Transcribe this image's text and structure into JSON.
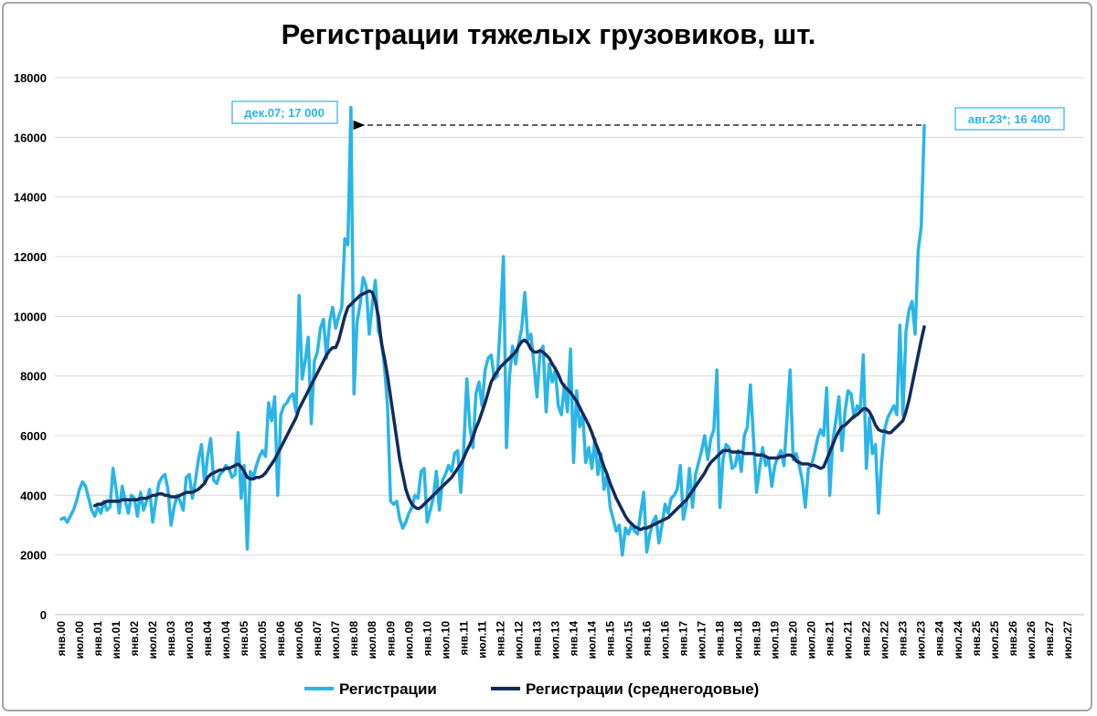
{
  "chart_data": {
    "type": "line",
    "title": "Регистрации тяжелых грузовиков, шт.",
    "categories": [
      "янв.00",
      null,
      null,
      null,
      null,
      null,
      "июл.00",
      null,
      null,
      null,
      null,
      null,
      "янв.01",
      null,
      null,
      null,
      null,
      null,
      "июл.01",
      null,
      null,
      null,
      null,
      null,
      "янв.02",
      null,
      null,
      null,
      null,
      null,
      "июл.02",
      null,
      null,
      null,
      null,
      null,
      "янв.03",
      null,
      null,
      null,
      null,
      null,
      "июл.03",
      null,
      null,
      null,
      null,
      null,
      "янв.04",
      null,
      null,
      null,
      null,
      null,
      "июл.04",
      null,
      null,
      null,
      null,
      null,
      "янв.05",
      null,
      null,
      null,
      null,
      null,
      "июл.05",
      null,
      null,
      null,
      null,
      null,
      "янв.06",
      null,
      null,
      null,
      null,
      null,
      "июл.06",
      null,
      null,
      null,
      null,
      null,
      "янв.07",
      null,
      null,
      null,
      null,
      null,
      "июл.07",
      null,
      null,
      null,
      null,
      null,
      "янв.08",
      null,
      null,
      null,
      null,
      null,
      "июл.08",
      null,
      null,
      null,
      null,
      null,
      "янв.09",
      null,
      null,
      null,
      null,
      null,
      "июл.09",
      null,
      null,
      null,
      null,
      null,
      "янв.10",
      null,
      null,
      null,
      null,
      null,
      "июл.10",
      null,
      null,
      null,
      null,
      null,
      "янв.11",
      null,
      null,
      null,
      null,
      null,
      "июл.11",
      null,
      null,
      null,
      null,
      null,
      "янв.12",
      null,
      null,
      null,
      null,
      null,
      "июл.12",
      null,
      null,
      null,
      null,
      null,
      "янв.13",
      null,
      null,
      null,
      null,
      null,
      "июл.13",
      null,
      null,
      null,
      null,
      null,
      "янв.14",
      null,
      null,
      null,
      null,
      null,
      "июл.14",
      null,
      null,
      null,
      null,
      null,
      "янв.15",
      null,
      null,
      null,
      null,
      null,
      "июл.15",
      null,
      null,
      null,
      null,
      null,
      "янв.16",
      null,
      null,
      null,
      null,
      null,
      "июл.16",
      null,
      null,
      null,
      null,
      null,
      "янв.17",
      null,
      null,
      null,
      null,
      null,
      "июл.17",
      null,
      null,
      null,
      null,
      null,
      "янв.18",
      null,
      null,
      null,
      null,
      null,
      "июл.18",
      null,
      null,
      null,
      null,
      null,
      "янв.19",
      null,
      null,
      null,
      null,
      null,
      "июл.19",
      null,
      null,
      null,
      null,
      null,
      "янв.20",
      null,
      null,
      null,
      null,
      null,
      "июл.20",
      null,
      null,
      null,
      null,
      null,
      "янв.21",
      null,
      null,
      null,
      null,
      null,
      "июл.21",
      null,
      null,
      null,
      null,
      null,
      "янв.22",
      null,
      null,
      null,
      null,
      null,
      "июл.22",
      null,
      null,
      null,
      null,
      null,
      "янв.23",
      null,
      null,
      null,
      null,
      null,
      "июл.23",
      null,
      null,
      null,
      null,
      null,
      "янв.24",
      null,
      null,
      null,
      null,
      null,
      "июл.24",
      null,
      null,
      null,
      null,
      null,
      "янв.25",
      null,
      null,
      null,
      null,
      null,
      "июл.25",
      null,
      null,
      null,
      null,
      null,
      "янв.26",
      null,
      null,
      null,
      null,
      null,
      "июл.26",
      null,
      null,
      null,
      null,
      null,
      "янв.27",
      null,
      null,
      null,
      null,
      null,
      "июл.27"
    ],
    "series": [
      {
        "name": "Регистрации",
        "color": "#29b5e8",
        "values": [
          3200,
          3250,
          3100,
          3300,
          3500,
          3800,
          4200,
          4450,
          4300,
          3900,
          3500,
          3300,
          3600,
          3400,
          3800,
          3500,
          3600,
          4900,
          4200,
          3400,
          4300,
          3800,
          3400,
          4000,
          3900,
          3300,
          4100,
          3500,
          3800,
          4200,
          3100,
          3800,
          4400,
          4600,
          4700,
          4200,
          3000,
          3600,
          4000,
          3800,
          3500,
          4600,
          4700,
          3900,
          4500,
          5200,
          5700,
          4400,
          5300,
          5900,
          4500,
          4400,
          4700,
          4800,
          5000,
          4900,
          4600,
          4700,
          6100,
          3900,
          5000,
          2200,
          4800,
          4600,
          5000,
          5300,
          5500,
          5300,
          7100,
          6500,
          7300,
          4000,
          6700,
          7000,
          7100,
          7300,
          7400,
          6800,
          10700,
          7900,
          8500,
          9300,
          6400,
          8500,
          8800,
          9600,
          9900,
          8600,
          9800,
          10300,
          9600,
          10000,
          10300,
          12600,
          12400,
          17000,
          7400,
          9800,
          10400,
          11300,
          11000,
          9400,
          10400,
          11200,
          9500,
          9200,
          8300,
          7000,
          3800,
          3700,
          3800,
          3200,
          2900,
          3100,
          3400,
          3600,
          4000,
          3900,
          4800,
          4900,
          3100,
          3500,
          3900,
          4800,
          3500,
          4500,
          4700,
          5000,
          4800,
          5400,
          5500,
          4100,
          5600,
          7900,
          6300,
          5600,
          7400,
          7800,
          7000,
          8200,
          8600,
          8700,
          7900,
          8000,
          9800,
          12000,
          5600,
          8000,
          9000,
          8400,
          9100,
          9600,
          10800,
          9200,
          9400,
          8400,
          7300,
          8800,
          9000,
          6800,
          8400,
          7800,
          8200,
          7000,
          6700,
          7700,
          6800,
          8900,
          5100,
          7500,
          6300,
          6700,
          5100,
          5600,
          4900,
          5900,
          4700,
          5400,
          4200,
          4700,
          3600,
          3200,
          2800,
          3000,
          2000,
          2900,
          2700,
          3000,
          2800,
          2700,
          3400,
          4100,
          2100,
          2700,
          3100,
          3300,
          2400,
          3000,
          3700,
          3400,
          3900,
          4000,
          4200,
          5000,
          3200,
          3700,
          4900,
          3600,
          4700,
          5100,
          5500,
          6000,
          5200,
          5900,
          6200,
          8200,
          3600,
          5200,
          5700,
          5600,
          4900,
          5000,
          5500,
          4800,
          6000,
          6300,
          7700,
          5900,
          4100,
          4900,
          5600,
          5000,
          5200,
          4300,
          5000,
          5300,
          5500,
          5000,
          6600,
          8200,
          5200,
          5400,
          5000,
          4500,
          3600,
          4900,
          5000,
          5400,
          5900,
          6200,
          6000,
          7600,
          4000,
          5800,
          6500,
          7300,
          5500,
          6800,
          7500,
          7400,
          6600,
          7000,
          6800,
          8700,
          4900,
          6600,
          5400,
          5700,
          3400,
          5100,
          6200,
          6600,
          6800,
          7000,
          6700,
          9700,
          6700,
          9500,
          10200,
          10500,
          9400,
          12200,
          13000,
          16400,
          null,
          null,
          null,
          null,
          null,
          null,
          null,
          null,
          null,
          null,
          null,
          null,
          null,
          null,
          null,
          null,
          null,
          null,
          null,
          null,
          null,
          null,
          null,
          null,
          null,
          null,
          null,
          null,
          null,
          null,
          null,
          null,
          null,
          null,
          null,
          null,
          null,
          null,
          null,
          null,
          null,
          null,
          null,
          null,
          null,
          null,
          null
        ]
      },
      {
        "name": "Регистрации (среднегодовые)",
        "color": "#132a5c",
        "values": [
          null,
          null,
          null,
          null,
          null,
          null,
          null,
          null,
          null,
          null,
          null,
          3650,
          3700,
          3700,
          3750,
          3800,
          3800,
          3800,
          3800,
          3800,
          3850,
          3850,
          3850,
          3850,
          3850,
          3850,
          3900,
          3900,
          3900,
          3950,
          4000,
          4000,
          4050,
          4050,
          4000,
          4000,
          3950,
          3950,
          3950,
          4000,
          4050,
          4100,
          4100,
          4100,
          4150,
          4200,
          4300,
          4400,
          4600,
          4700,
          4750,
          4800,
          4850,
          4850,
          4900,
          4900,
          4950,
          5000,
          5050,
          4950,
          4800,
          4600,
          4550,
          4550,
          4600,
          4600,
          4650,
          4750,
          4900,
          5050,
          5200,
          5400,
          5600,
          5800,
          6000,
          6200,
          6400,
          6600,
          6900,
          7100,
          7300,
          7500,
          7700,
          7900,
          8100,
          8300,
          8500,
          8700,
          8850,
          8950,
          8950,
          9200,
          9600,
          10000,
          10300,
          10400,
          10500,
          10600,
          10700,
          10750,
          10800,
          10850,
          10800,
          10500,
          10000,
          9100,
          8600,
          8000,
          7300,
          6600,
          5900,
          5200,
          4700,
          4200,
          3900,
          3700,
          3600,
          3550,
          3600,
          3700,
          3800,
          3900,
          4000,
          4100,
          4200,
          4300,
          4400,
          4500,
          4600,
          4750,
          4900,
          5050,
          5250,
          5500,
          5700,
          5950,
          6250,
          6500,
          6800,
          7100,
          7450,
          7800,
          8000,
          8150,
          8300,
          8400,
          8500,
          8600,
          8700,
          8800,
          9000,
          9150,
          9200,
          9100,
          8900,
          8800,
          8800,
          8850,
          8800,
          8700,
          8600,
          8400,
          8250,
          8050,
          7800,
          7650,
          7550,
          7450,
          7300,
          7150,
          6950,
          6750,
          6550,
          6350,
          6100,
          5800,
          5550,
          5250,
          4950,
          4700,
          4400,
          4150,
          3900,
          3700,
          3500,
          3300,
          3150,
          3050,
          2950,
          2900,
          2850,
          2900,
          2900,
          2950,
          3000,
          3050,
          3100,
          3150,
          3200,
          3250,
          3350,
          3450,
          3550,
          3650,
          3750,
          3850,
          4000,
          4150,
          4300,
          4450,
          4600,
          4750,
          4950,
          5100,
          5200,
          5300,
          5400,
          5500,
          5500,
          5500,
          5450,
          5450,
          5450,
          5450,
          5400,
          5400,
          5400,
          5400,
          5350,
          5350,
          5350,
          5300,
          5250,
          5250,
          5250,
          5250,
          5300,
          5300,
          5350,
          5350,
          5300,
          5150,
          5100,
          5050,
          5050,
          5050,
          5000,
          5000,
          4950,
          4900,
          4950,
          5200,
          5450,
          5700,
          5950,
          6150,
          6300,
          6350,
          6450,
          6550,
          6650,
          6700,
          6800,
          6900,
          6900,
          6800,
          6600,
          6350,
          6200,
          6150,
          6150,
          6100,
          6100,
          6200,
          6300,
          6400,
          6500,
          6800,
          7200,
          7700,
          8200,
          8700,
          9200,
          9650,
          null,
          null,
          null,
          null,
          null,
          null,
          null,
          null,
          null,
          null,
          null,
          null,
          null,
          null,
          null,
          null,
          null,
          null,
          null,
          null,
          null,
          null,
          null,
          null,
          null,
          null,
          null,
          null,
          null,
          null,
          null,
          null,
          null,
          null,
          null,
          null,
          null,
          null,
          null,
          null,
          null,
          null,
          null,
          null,
          null,
          null,
          null
        ]
      }
    ],
    "ylim": [
      0,
      18000
    ],
    "yticks": [
      0,
      2000,
      4000,
      6000,
      8000,
      10000,
      12000,
      14000,
      16000,
      18000
    ],
    "grid": true,
    "legend": "bottom",
    "annotations": [
      "дек.07; 17 000",
      "авг.23*; 16 400"
    ]
  }
}
